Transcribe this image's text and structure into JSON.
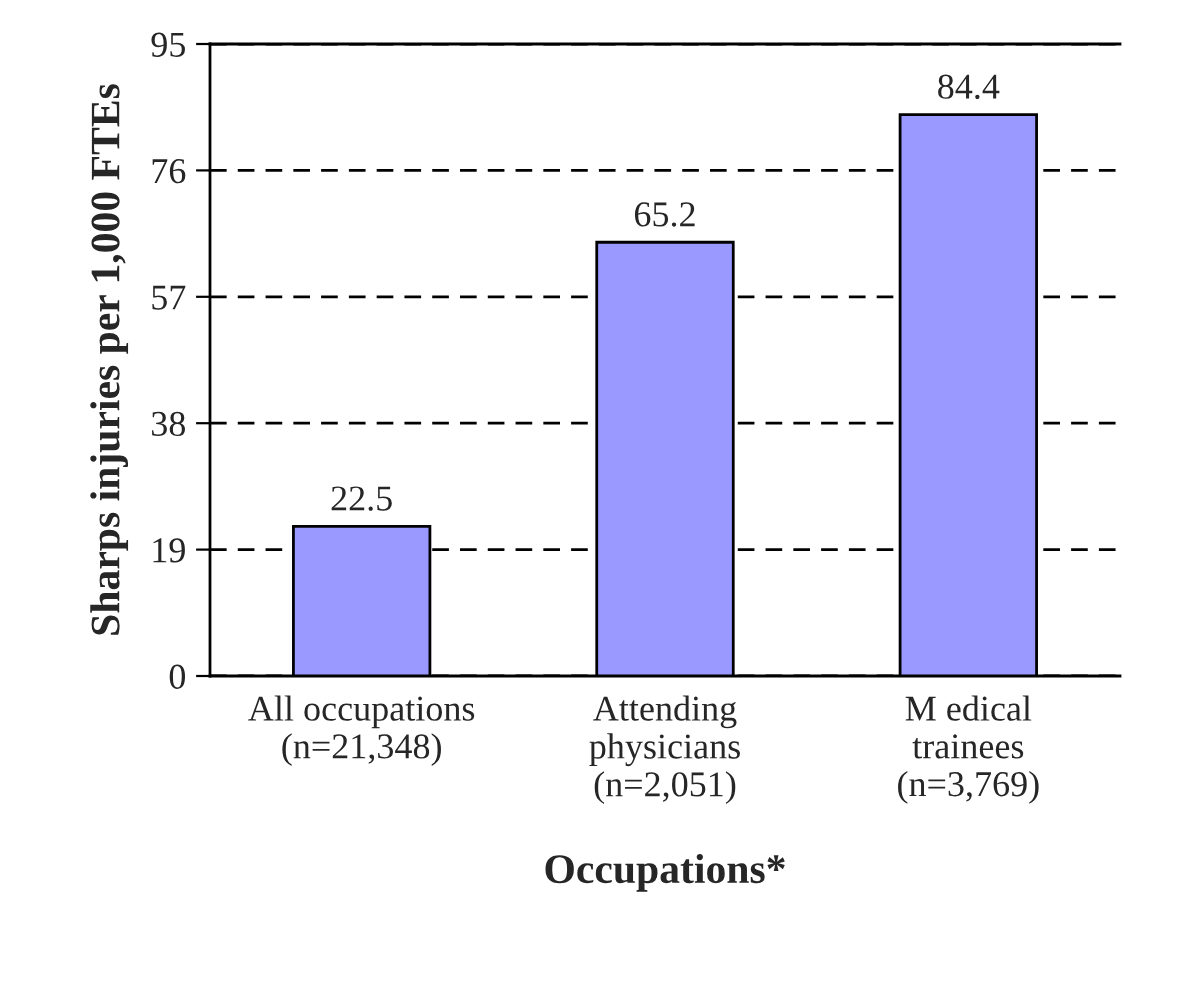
{
  "chart_data": {
    "type": "bar",
    "xlabel": "Occupations*",
    "ylabel": "Sharps injuries per 1,000 FTEs",
    "categories": [
      "All occupations\n(n=21,348)",
      "Attending\nphysicians\n(n=2,051)",
      "M edical\ntrainees\n(n=3,769)"
    ],
    "values": [
      22.5,
      65.2,
      84.4
    ],
    "color": "#9999ff",
    "ylim": [
      0,
      95
    ],
    "yticks": [
      0,
      19,
      38,
      57,
      76,
      95
    ],
    "grid": "y",
    "line_style": "dashed",
    "data_labels": true
  }
}
